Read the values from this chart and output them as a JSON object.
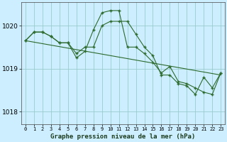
{
  "title": "Graphe pression niveau de la mer (hPa)",
  "background_color": "#cceeff",
  "grid_color": "#99cccc",
  "line_color": "#2d6a2d",
  "marker_color": "#2d6a2d",
  "xlim": [
    -0.5,
    23.5
  ],
  "ylim": [
    1017.7,
    1020.55
  ],
  "yticks": [
    1018,
    1019,
    1020
  ],
  "xticks": [
    0,
    1,
    2,
    3,
    4,
    5,
    6,
    7,
    8,
    9,
    10,
    11,
    12,
    13,
    14,
    15,
    16,
    17,
    18,
    19,
    20,
    21,
    22,
    23
  ],
  "series": [
    {
      "x": [
        0,
        1,
        2,
        3,
        4,
        5,
        6,
        7,
        8,
        9,
        10,
        11,
        12,
        13,
        14,
        15,
        16,
        17,
        18,
        19,
        20,
        21,
        22,
        23
      ],
      "y": [
        1019.65,
        1019.85,
        1019.85,
        1019.75,
        1019.6,
        1019.6,
        1019.35,
        1019.5,
        1019.5,
        1020.0,
        1020.1,
        1020.1,
        1020.1,
        1019.8,
        1019.5,
        1019.3,
        1018.85,
        1018.85,
        1018.65,
        1018.6,
        1018.4,
        1018.8,
        1018.55,
        1018.9
      ],
      "marker": "+"
    },
    {
      "x": [
        0,
        1,
        2,
        3,
        4,
        5,
        6,
        7,
        8,
        9,
        10,
        11,
        12,
        13,
        14,
        15,
        16,
        17,
        18,
        19,
        20,
        21,
        22,
        23
      ],
      "y": [
        1019.65,
        1019.85,
        1019.85,
        1019.75,
        1019.6,
        1019.6,
        1019.25,
        1019.4,
        1019.9,
        1020.3,
        1020.35,
        1020.35,
        1019.5,
        1019.5,
        1019.35,
        1019.15,
        1018.9,
        1019.05,
        1018.7,
        1018.65,
        1018.55,
        1018.45,
        1018.4,
        1018.9
      ],
      "marker": "+"
    },
    {
      "x": [
        0,
        23
      ],
      "y": [
        1019.65,
        1018.85
      ],
      "marker": null
    }
  ]
}
